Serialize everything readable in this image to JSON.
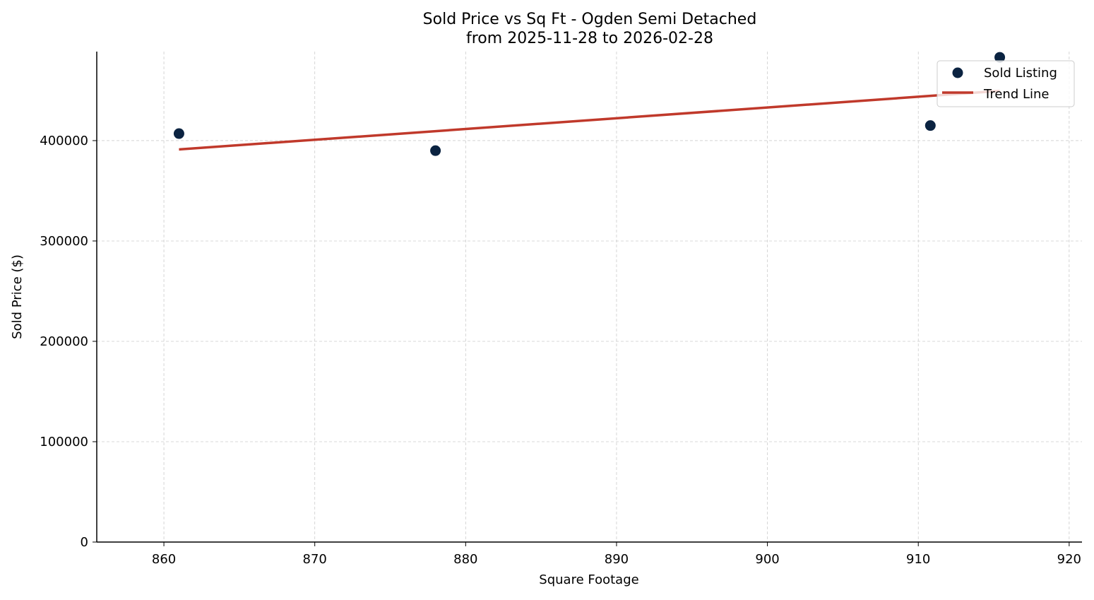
{
  "chart_data": {
    "type": "scatter",
    "title": "Sold Price vs Sq Ft - Ogden Semi Detached",
    "subtitle": "from 2025-11-28 to 2026-02-28",
    "xlabel": "Square Footage",
    "ylabel": "Sold Price ($)",
    "xlim": [
      855.55,
      920.85
    ],
    "ylim": [
      0,
      488700
    ],
    "x_ticks": [
      860,
      870,
      880,
      890,
      900,
      910,
      920
    ],
    "y_ticks": [
      0,
      100000,
      200000,
      300000,
      400000
    ],
    "grid": true,
    "legend_position": "top-right",
    "series": [
      {
        "name": "Sold Listing",
        "kind": "scatter",
        "color": "#0b2341",
        "x": [
          861,
          878,
          910.8,
          915.4
        ],
        "y": [
          407000,
          390000,
          415000,
          483000
        ]
      },
      {
        "name": "Trend Line",
        "kind": "line",
        "color": "#c0392b",
        "x": [
          861,
          915.4
        ],
        "y": [
          391200,
          449500
        ]
      }
    ]
  }
}
